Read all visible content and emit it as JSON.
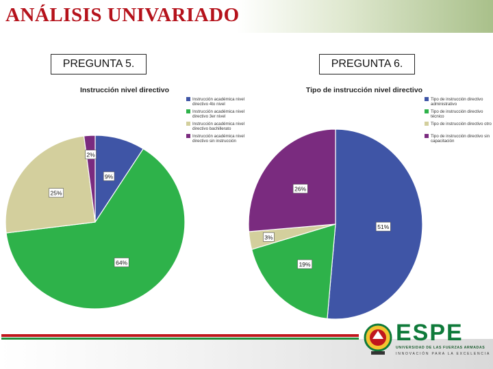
{
  "page": {
    "title": "ANÁLISIS UNIVARIADO"
  },
  "questions": {
    "q5": "PREGUNTA 5.",
    "q6": "PREGUNTA 6."
  },
  "colors": {
    "blue": "#3f55a6",
    "green": "#2eb24a",
    "tan": "#d3cf9d",
    "purple": "#7a2b7f",
    "title_red": "#b5121b"
  },
  "logo": {
    "word": "ESPE",
    "line1": "UNIVERSIDAD DE LAS FUERZAS ARMADAS",
    "line2": "INNOVACIÓN PARA LA EXCELENCIA"
  },
  "chart_data": [
    {
      "type": "pie",
      "title": "Instrucción nivel directivo",
      "legend_position": "right",
      "slices": [
        {
          "label": "Instrucción académica nivel directivo 4to nivel",
          "value": 9,
          "display": "9%",
          "color": "#3f55a6"
        },
        {
          "label": "Instrucción académica nivel directivo 3er nivel",
          "value": 64,
          "display": "64%",
          "color": "#2eb24a"
        },
        {
          "label": "Instrucción académica nivel directivo bachillerato",
          "value": 25,
          "display": "25%",
          "color": "#d3cf9d"
        },
        {
          "label": "Instrucción académica nivel directivo sin instrucción",
          "value": 2,
          "display": "2%",
          "color": "#7a2b7f"
        }
      ]
    },
    {
      "type": "pie",
      "title": "Tipo de instrucción nivel directivo",
      "legend_position": "right",
      "slices": [
        {
          "label": "Tipo de instrucción directivo administrativo",
          "value": 51,
          "display": "51%",
          "color": "#3f55a6"
        },
        {
          "label": "Tipo de instrucción directivo técnico",
          "value": 19,
          "display": "19%",
          "color": "#2eb24a"
        },
        {
          "label": "Tipo de instrucción directivo otro",
          "value": 3,
          "display": "3%",
          "color": "#d3cf9d"
        },
        {
          "label": "Tipo de instrucción directivo sin capacitación",
          "value": 26,
          "display": "26%",
          "color": "#7a2b7f"
        }
      ]
    }
  ]
}
